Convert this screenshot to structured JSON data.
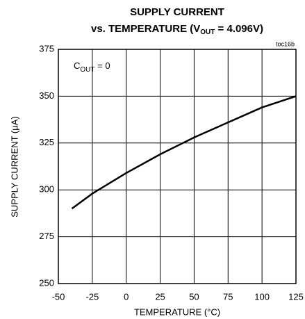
{
  "chart_data": {
    "type": "line",
    "title": "SUPPLY CURRENT",
    "subtitle": {
      "main": "vs. TEMPERATURE (V",
      "sub": "OUT",
      "tail": " = 4.096V)"
    },
    "annotation": {
      "main": "C",
      "sub": "OUT",
      "tail": " = 0"
    },
    "code": "toc16b",
    "x_label": "TEMPERATURE (°C)",
    "y_label": "SUPPLY CURRENT (µA)",
    "x": [
      -40,
      -25,
      0,
      25,
      50,
      75,
      100,
      125
    ],
    "series": [
      {
        "name": "COUT = 0",
        "color": "#000000",
        "values": [
          290,
          298,
          309,
          319,
          328,
          336,
          344,
          350
        ]
      }
    ],
    "xlim": [
      -50,
      125
    ],
    "xticks": [
      -50,
      -25,
      0,
      25,
      50,
      75,
      100,
      125
    ],
    "ylim": [
      250,
      375
    ],
    "yticks": [
      250,
      275,
      300,
      325,
      350,
      375
    ],
    "grid": true
  }
}
